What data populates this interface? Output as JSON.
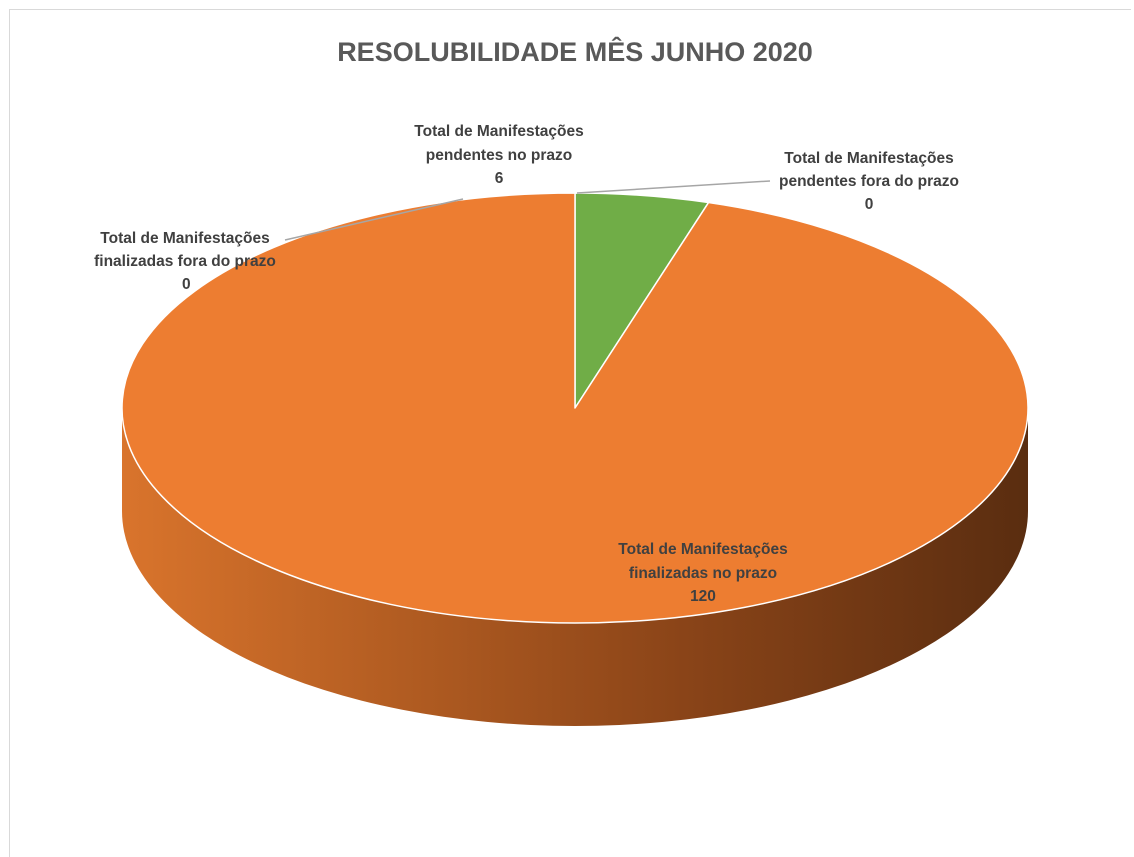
{
  "chart_data": {
    "type": "pie",
    "title": "RESOLUBILIDADE MÊS JUNHO 2020",
    "slices": [
      {
        "name": "Total de Manifestações pendentes no prazo",
        "value": 6,
        "color": "#70ad47"
      },
      {
        "name": "Total de Manifestações pendentes fora do prazo",
        "value": 0,
        "color": "#ffc000"
      },
      {
        "name": "Total de Manifestações finalizadas no prazo",
        "value": 120,
        "color": "#ed7d31"
      },
      {
        "name": "Total de Manifestações finalizadas fora do prazo",
        "value": 0,
        "color": "#a5a5a5"
      }
    ],
    "labels": [
      {
        "line1": "Total de Manifestações",
        "line2": "pendentes no prazo",
        "line3": "6"
      },
      {
        "line1": "Total de Manifestações",
        "line2": "pendentes fora do prazo",
        "line3": "0"
      },
      {
        "line1": "Total de Manifestações",
        "line2": "finalizadas no prazo",
        "line3": "120"
      },
      {
        "line1": "Total de Manifestações",
        "line2": "finalizadas fora do prazo",
        "line3": "0"
      }
    ],
    "legend": "none",
    "style": "3d-pie"
  }
}
